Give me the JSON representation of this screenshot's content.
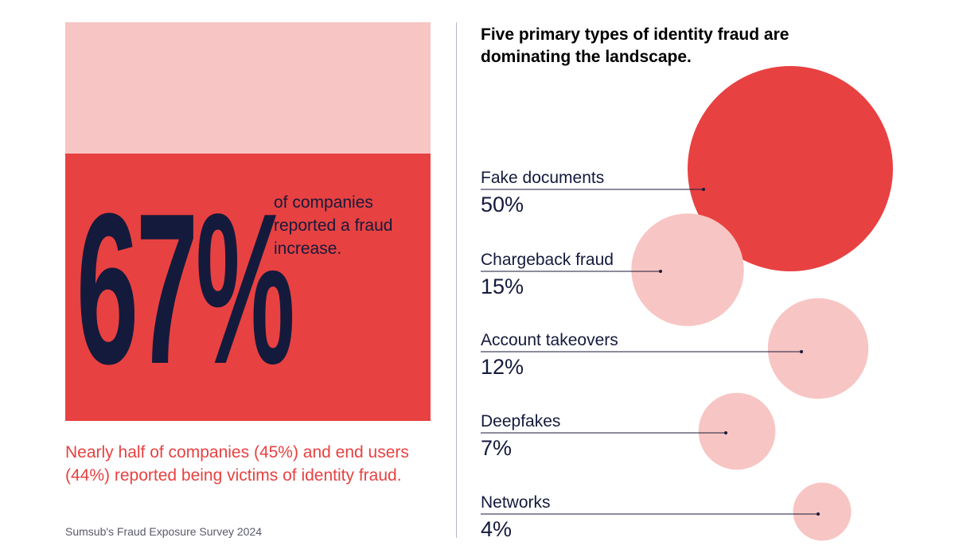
{
  "left": {
    "big_number": "67%",
    "big_caption": "of companies reported a fraud increase.",
    "subtext": "Nearly half of companies (45%) and end users (44%) reported being victims of identity fraud.",
    "source": "Sumsub's Fraud Exposure Survey 2024"
  },
  "colors": {
    "accent_red": "#e84141",
    "light_pink": "#f7c5c3",
    "navy": "#141a3c"
  },
  "chart_data": {
    "type": "bubble",
    "title": "Five primary types of identity fraud are dominating the landscape.",
    "unit": "%",
    "categories": [
      "Fake documents",
      "Chargeback fraud",
      "Account takeovers",
      "Deepfakes",
      "Networks"
    ],
    "values": [
      50,
      15,
      12,
      7,
      4
    ],
    "value_labels": [
      "50%",
      "15%",
      "12%",
      "7%",
      "4%"
    ],
    "highlight_index": 0
  }
}
